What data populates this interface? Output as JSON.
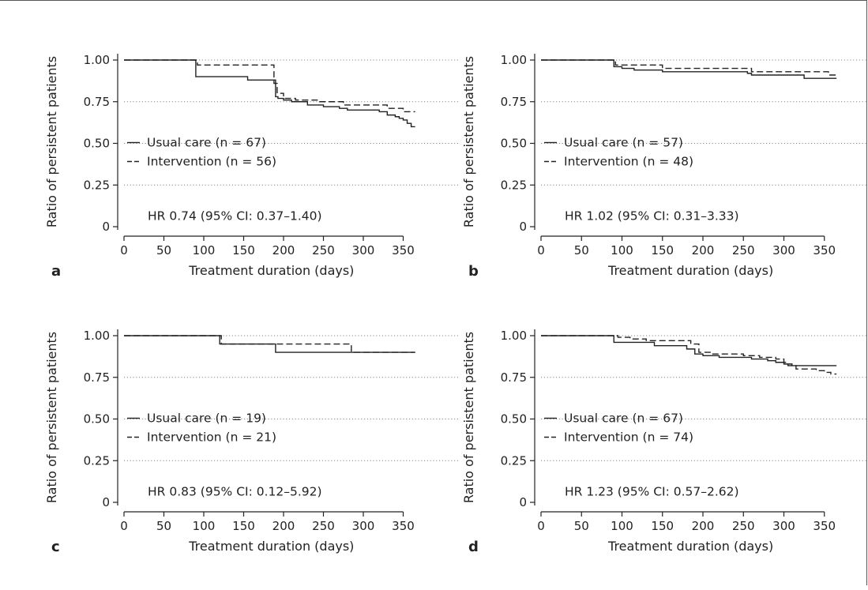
{
  "chart_data": [
    {
      "type": "line",
      "panel_label": "a",
      "xlabel": "Treatment duration (days)",
      "ylabel": "Ratio of persistent patients",
      "xlim": [
        0,
        370
      ],
      "ylim": [
        0,
        1.05
      ],
      "xticks": [
        0,
        50,
        100,
        150,
        200,
        250,
        300,
        350
      ],
      "yticks": [
        0,
        0.25,
        0.5,
        0.75,
        1.0
      ],
      "ytick_labels": [
        "0",
        "0.25",
        "0.50",
        "0.75",
        "1.00"
      ],
      "grid": "horizontal dotted",
      "series": [
        {
          "name": "Usual care (n = 67)",
          "style": "solid",
          "x": [
            0,
            90,
            155,
            190,
            193,
            200,
            210,
            230,
            250,
            270,
            280,
            300,
            320,
            330,
            340,
            345,
            350,
            355,
            360,
            365
          ],
          "y": [
            1.0,
            0.9,
            0.88,
            0.78,
            0.77,
            0.76,
            0.75,
            0.73,
            0.72,
            0.71,
            0.7,
            0.7,
            0.69,
            0.67,
            0.66,
            0.65,
            0.64,
            0.62,
            0.6,
            0.6
          ]
        },
        {
          "name": "Intervention (n = 56)",
          "style": "dashed",
          "x": [
            0,
            92,
            185,
            188,
            192,
            200,
            215,
            245,
            275,
            330,
            350,
            365
          ],
          "y": [
            1.0,
            0.97,
            0.97,
            0.86,
            0.8,
            0.77,
            0.76,
            0.75,
            0.73,
            0.71,
            0.69,
            0.69
          ]
        }
      ],
      "legend_position": "center-left",
      "annotation": "HR 0.74 (95% CI: 0.37–1.40)"
    },
    {
      "type": "line",
      "panel_label": "b",
      "xlabel": "Treatment duration (days)",
      "ylabel": "Ratio of persistent patients",
      "xlim": [
        0,
        370
      ],
      "ylim": [
        0,
        1.05
      ],
      "xticks": [
        0,
        50,
        100,
        150,
        200,
        250,
        300,
        350
      ],
      "yticks": [
        0,
        0.25,
        0.5,
        0.75,
        1.0
      ],
      "ytick_labels": [
        "0",
        "0.25",
        "0.50",
        "0.75",
        "1.00"
      ],
      "grid": "horizontal dotted",
      "series": [
        {
          "name": "Usual care (n = 57)",
          "style": "solid",
          "x": [
            0,
            90,
            100,
            115,
            150,
            255,
            260,
            325,
            365
          ],
          "y": [
            1.0,
            0.96,
            0.95,
            0.94,
            0.93,
            0.92,
            0.91,
            0.89,
            0.89
          ]
        },
        {
          "name": "Intervention (n = 48)",
          "style": "dashed",
          "x": [
            0,
            92,
            150,
            260,
            355,
            365
          ],
          "y": [
            1.0,
            0.97,
            0.95,
            0.93,
            0.91,
            0.91
          ]
        }
      ],
      "legend_position": "center-left",
      "annotation": "HR 1.02 (95% CI: 0.31–3.33)"
    },
    {
      "type": "line",
      "panel_label": "c",
      "xlabel": "Treatment duration (days)",
      "ylabel": "Ratio of persistent patients",
      "xlim": [
        0,
        370
      ],
      "ylim": [
        0,
        1.05
      ],
      "xticks": [
        0,
        50,
        100,
        150,
        200,
        250,
        300,
        350
      ],
      "yticks": [
        0,
        0.25,
        0.5,
        0.75,
        1.0
      ],
      "ytick_labels": [
        "0",
        "0.25",
        "0.50",
        "0.75",
        "1.00"
      ],
      "grid": "horizontal dotted",
      "series": [
        {
          "name": "Usual care (n = 19)",
          "style": "solid",
          "x": [
            0,
            120,
            190,
            365
          ],
          "y": [
            1.0,
            0.95,
            0.9,
            0.9
          ]
        },
        {
          "name": "Intervention (n = 21)",
          "style": "dashed",
          "x": [
            0,
            122,
            285,
            365
          ],
          "y": [
            1.0,
            0.95,
            0.9,
            0.9
          ]
        }
      ],
      "legend_position": "center-left",
      "annotation": "HR 0.83 (95% CI: 0.12–5.92)"
    },
    {
      "type": "line",
      "panel_label": "d",
      "xlabel": "Treatment duration (days)",
      "ylabel": "Ratio of persistent patients",
      "xlim": [
        0,
        370
      ],
      "ylim": [
        0,
        1.05
      ],
      "xticks": [
        0,
        50,
        100,
        150,
        200,
        250,
        300,
        350
      ],
      "yticks": [
        0,
        0.25,
        0.5,
        0.75,
        1.0
      ],
      "ytick_labels": [
        "0",
        "0.25",
        "0.50",
        "0.75",
        "1.00"
      ],
      "grid": "horizontal dotted",
      "series": [
        {
          "name": "Usual care (n = 67)",
          "style": "solid",
          "x": [
            0,
            90,
            140,
            180,
            190,
            200,
            220,
            260,
            280,
            290,
            300,
            310,
            365
          ],
          "y": [
            1.0,
            0.96,
            0.94,
            0.92,
            0.89,
            0.88,
            0.87,
            0.86,
            0.85,
            0.84,
            0.83,
            0.82,
            0.82
          ]
        },
        {
          "name": "Intervention (n = 74)",
          "style": "dashed",
          "x": [
            0,
            95,
            110,
            130,
            185,
            195,
            210,
            250,
            270,
            290,
            300,
            305,
            315,
            340,
            350,
            358,
            365
          ],
          "y": [
            1.0,
            0.99,
            0.98,
            0.97,
            0.95,
            0.9,
            0.89,
            0.88,
            0.87,
            0.86,
            0.84,
            0.82,
            0.8,
            0.79,
            0.78,
            0.77,
            0.77
          ]
        }
      ],
      "legend_position": "center-left",
      "annotation": "HR 1.23 (95% CI: 0.57–2.62)"
    }
  ],
  "colors": {
    "line": "#222222",
    "grid": "#888888",
    "axis": "#222222"
  }
}
